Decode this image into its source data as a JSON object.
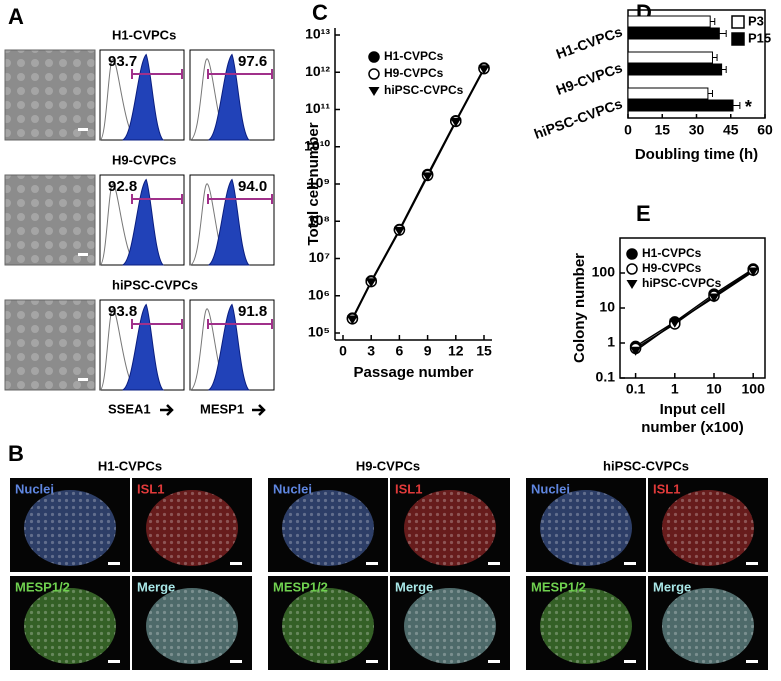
{
  "figure": {
    "panel_a": {
      "letter": "A",
      "rows": [
        {
          "title": "H1-CVPCs",
          "ssea1": "93.7",
          "mesp1": "97.6"
        },
        {
          "title": "H9-CVPCs",
          "ssea1": "92.8",
          "mesp1": "94.0"
        },
        {
          "title": "hiPSC-CVPCs",
          "ssea1": "93.8",
          "mesp1": "91.8"
        }
      ],
      "x_labels": [
        "SSEA1",
        "MESP1"
      ]
    },
    "panel_b": {
      "letter": "B",
      "groups": [
        {
          "title": "H1-CVPCs"
        },
        {
          "title": "H9-CVPCs"
        },
        {
          "title": "hiPSC-CVPCs"
        }
      ],
      "channels": [
        {
          "name": "Nuclei",
          "color": "#5f86e0"
        },
        {
          "name": "ISL1",
          "color": "#e03a3a"
        },
        {
          "name": "MESP1/2",
          "color": "#6fd04f"
        },
        {
          "name": "Merge",
          "color": "#a8e6e6"
        }
      ]
    }
  },
  "chart_data": [
    {
      "type": "line",
      "panel": "C",
      "xlabel": "Passage number",
      "ylabel": "Total cell number",
      "log_y": true,
      "x": [
        1,
        3,
        6,
        9,
        12,
        15
      ],
      "xlim": [
        0,
        15
      ],
      "xticks": [
        0,
        3,
        6,
        9,
        12,
        15
      ],
      "ylim": [
        100000,
        10000000000000
      ],
      "yticks": [
        {
          "value": 100000,
          "label": "10⁵"
        },
        {
          "value": 1000000,
          "label": "10⁶"
        },
        {
          "value": 10000000,
          "label": "10⁷"
        },
        {
          "value": 100000000,
          "label": "10⁸"
        },
        {
          "value": 1000000000,
          "label": "10⁹"
        },
        {
          "value": 10000000000,
          "label": "10¹⁰"
        },
        {
          "value": 100000000000,
          "label": "10¹¹"
        },
        {
          "value": 1000000000000,
          "label": "10¹²"
        },
        {
          "value": 10000000000000,
          "label": "10¹³"
        }
      ],
      "series": [
        {
          "name": "H1-CVPCs",
          "marker": "filled-circle",
          "color": "#000000",
          "values": [
            250000,
            2500000,
            60000000,
            1800000000,
            50000000000,
            1300000000000
          ]
        },
        {
          "name": "H9-CVPCs",
          "marker": "open-circle",
          "color": "#000000",
          "values": [
            240000,
            2400000,
            58000000,
            1700000000,
            48000000000,
            1250000000000
          ]
        },
        {
          "name": "hiPSC-CVPCs",
          "marker": "triangle-down",
          "color": "#000000",
          "values": [
            230000,
            2300000,
            55000000,
            1600000000,
            46000000000,
            1200000000000
          ]
        }
      ]
    },
    {
      "type": "hbar",
      "panel": "D",
      "xlabel": "Doubling time (h)",
      "categories": [
        "H1-CVPCs",
        "H9-CVPCs",
        "hiPSC-CVPCs"
      ],
      "xlim": [
        0,
        60
      ],
      "xticks": [
        0,
        15,
        30,
        45,
        60
      ],
      "series": [
        {
          "name": "P3",
          "color": "#ffffff",
          "values": [
            36,
            37,
            35
          ],
          "errors": [
            2,
            2,
            2
          ]
        },
        {
          "name": "P15",
          "color": "#000000",
          "values": [
            40,
            41,
            46
          ],
          "errors": [
            3,
            2,
            3
          ]
        }
      ],
      "annotation": "*"
    },
    {
      "type": "scatter-line",
      "panel": "E",
      "xlabel": [
        "Input cell",
        "number (x100)"
      ],
      "ylabel": "Colony number",
      "log_x": true,
      "log_y": true,
      "x": [
        0.1,
        1,
        10,
        100
      ],
      "xlim": [
        0.04,
        200
      ],
      "xticks": [
        0.1,
        1,
        10,
        100
      ],
      "ylim": [
        0.1,
        1000
      ],
      "yticks": [
        0.1,
        1,
        10,
        100
      ],
      "series": [
        {
          "name": "H1-CVPCs",
          "marker": "filled-circle",
          "color": "#000000",
          "values": [
            0.8,
            4,
            25,
            130
          ]
        },
        {
          "name": "H9-CVPCs",
          "marker": "open-circle",
          "color": "#000000",
          "values": [
            0.7,
            3.5,
            22,
            120
          ]
        },
        {
          "name": "hiPSC-CVPCs",
          "marker": "triangle-down",
          "color": "#000000",
          "values": [
            0.6,
            3.8,
            20,
            110
          ]
        }
      ]
    }
  ]
}
